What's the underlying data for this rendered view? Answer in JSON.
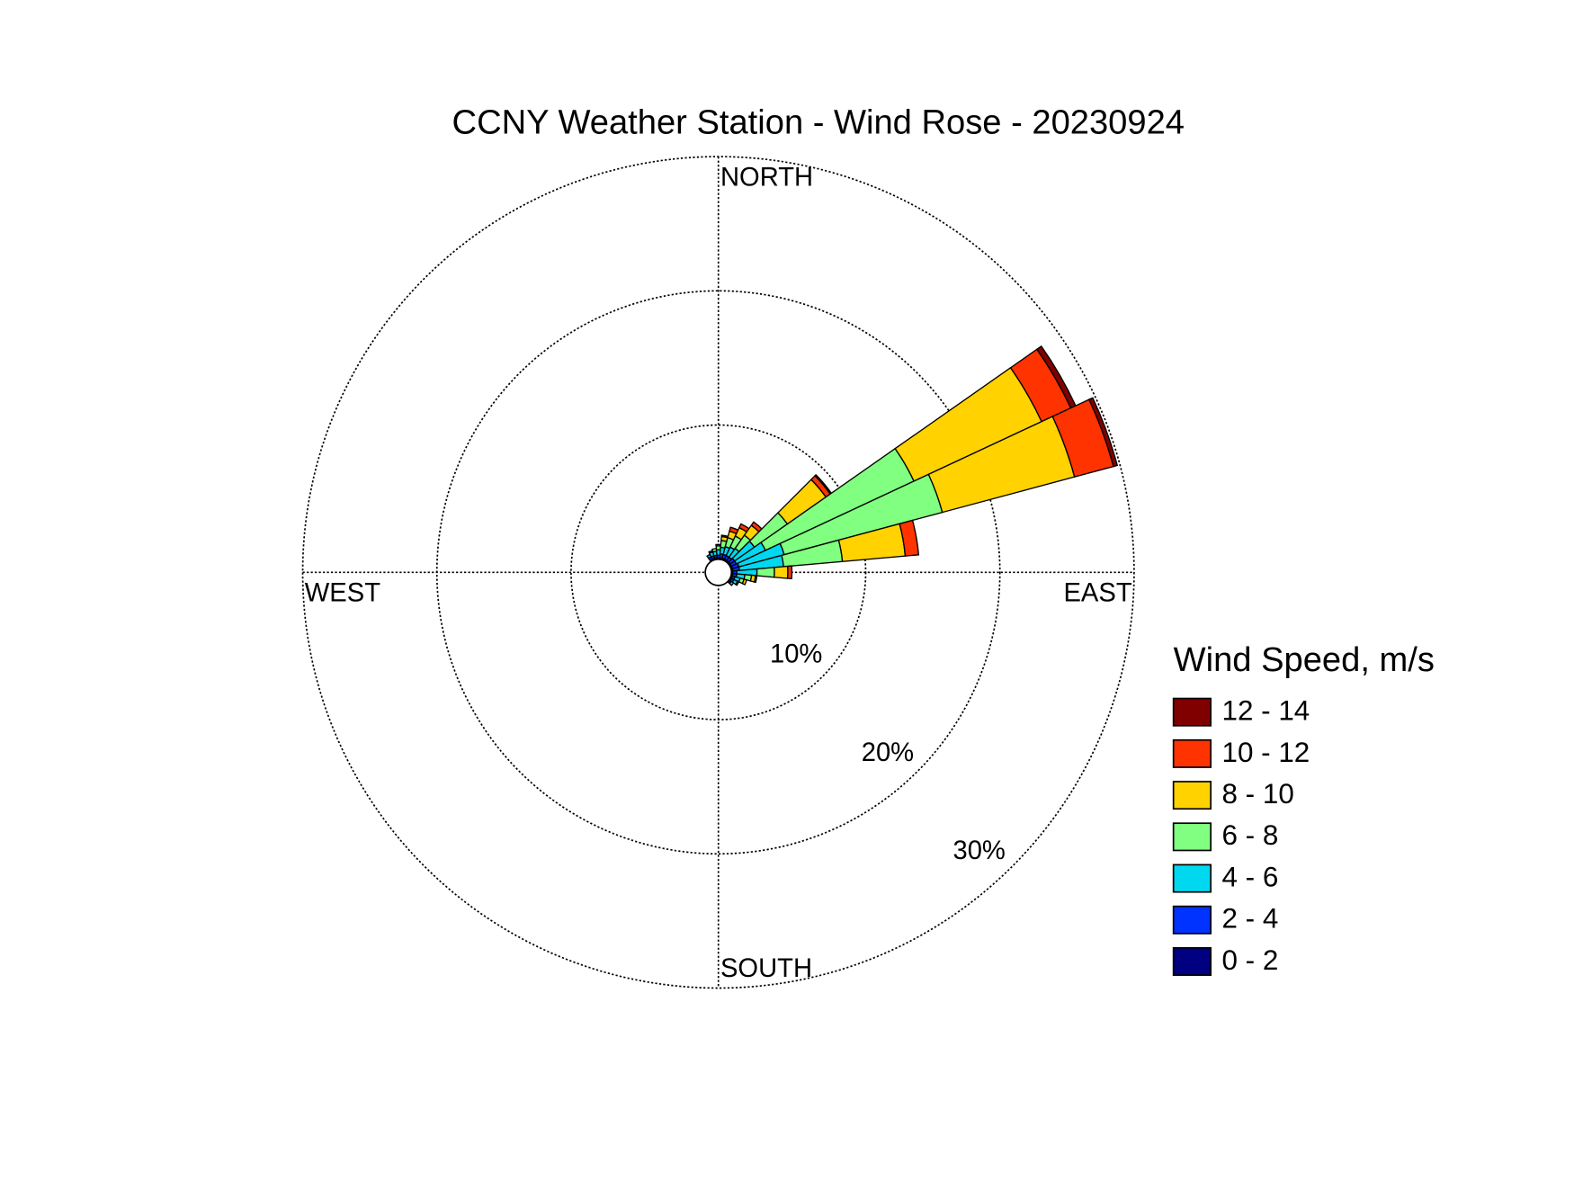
{
  "chart_data": {
    "type": "windrose",
    "title": "CCNY Weather Station - Wind Rose - 20230924",
    "direction_labels": [
      "NORTH",
      "EAST",
      "SOUTH",
      "WEST"
    ],
    "x": [
      0,
      10,
      20,
      30,
      40,
      50,
      60,
      70,
      80,
      90,
      100,
      110,
      120,
      130,
      140,
      150,
      160,
      170,
      180,
      190,
      200,
      210,
      220,
      230,
      240,
      250,
      260,
      270,
      280,
      290,
      300,
      310,
      320,
      330,
      340,
      350
    ],
    "ylim": [
      0,
      30
    ],
    "yticks": [
      {
        "value": 10,
        "label": "10%"
      },
      {
        "value": 20,
        "label": "20%"
      },
      {
        "value": 30,
        "label": "30%"
      }
    ],
    "legend_title": "Wind Speed, m/s",
    "series": [
      {
        "name": "0 - 2",
        "color": "#000080",
        "values": [
          0.1,
          0.1,
          0.1,
          0.1,
          0.1,
          0.1,
          0.1,
          0.1,
          0.1,
          0.1,
          0.1,
          0.1,
          0.1,
          0.1,
          0,
          0,
          0,
          0,
          0,
          0,
          0,
          0,
          0,
          0,
          0,
          0,
          0,
          0,
          0,
          0,
          0,
          0,
          0,
          0.1,
          0.1,
          0.1
        ]
      },
      {
        "name": "2 - 4",
        "color": "#0033ff",
        "values": [
          0.2,
          0.3,
          0.3,
          0.3,
          0.3,
          0.4,
          0.4,
          0.5,
          0.5,
          0.3,
          0.3,
          0.2,
          0.2,
          0.1,
          0,
          0,
          0,
          0,
          0,
          0,
          0,
          0,
          0,
          0,
          0,
          0,
          0,
          0,
          0,
          0,
          0,
          0,
          0,
          0.2,
          0.2,
          0.2
        ]
      },
      {
        "name": "4 - 6",
        "color": "#00d8f0",
        "values": [
          0.4,
          0.5,
          0.6,
          0.7,
          0.8,
          1.8,
          2.4,
          3.5,
          3.3,
          1.5,
          0.6,
          0.4,
          0.3,
          0.2,
          0,
          0,
          0,
          0,
          0,
          0,
          0,
          0,
          0,
          0,
          0,
          0,
          0,
          0,
          0,
          0,
          0,
          0,
          0,
          0.2,
          0.3,
          0.3
        ]
      },
      {
        "name": "6 - 8",
        "color": "#80ff80",
        "values": [
          0.3,
          0.5,
          0.7,
          0.9,
          1.2,
          3.0,
          12.2,
          12.2,
          4.4,
          1.3,
          0.5,
          0.3,
          0.1,
          0,
          0,
          0,
          0,
          0,
          0,
          0,
          0,
          0,
          0,
          0,
          0,
          0,
          0,
          0,
          0,
          0,
          0,
          0,
          0,
          0,
          0.1,
          0.2
        ]
      },
      {
        "name": "8 - 10",
        "color": "#ffd200",
        "values": [
          0.1,
          0.3,
          0.5,
          0.7,
          0.9,
          3.5,
          10.5,
          10.2,
          4.7,
          1.0,
          0.3,
          0.2,
          0,
          0,
          0,
          0,
          0,
          0,
          0,
          0,
          0,
          0,
          0,
          0,
          0,
          0,
          0,
          0,
          0,
          0,
          0,
          0,
          0,
          0,
          0,
          0
        ]
      },
      {
        "name": "10 - 12",
        "color": "#ff3300",
        "values": [
          0,
          0.1,
          0.3,
          0.3,
          0.3,
          0.4,
          2.4,
          3.0,
          1.0,
          0.3,
          0.1,
          0,
          0,
          0,
          0,
          0,
          0,
          0,
          0,
          0,
          0,
          0,
          0,
          0,
          0,
          0,
          0,
          0,
          0,
          0,
          0,
          0,
          0,
          0,
          0,
          0
        ]
      },
      {
        "name": "12 - 14",
        "color": "#800000",
        "values": [
          0,
          0,
          0,
          0,
          0,
          0.1,
          0.4,
          0.3,
          0,
          0,
          0,
          0,
          0,
          0,
          0,
          0,
          0,
          0,
          0,
          0,
          0,
          0,
          0,
          0,
          0,
          0,
          0,
          0,
          0,
          0,
          0,
          0,
          0,
          0,
          0,
          0
        ]
      }
    ]
  }
}
